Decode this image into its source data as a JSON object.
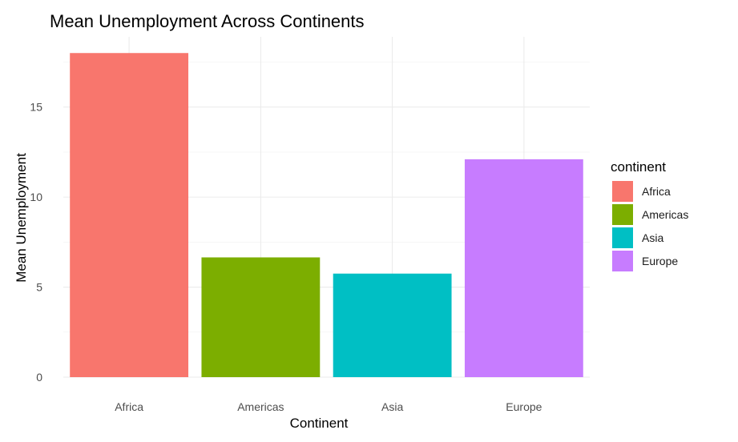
{
  "chart_data": {
    "type": "bar",
    "title": "Mean Unemployment Across Continents",
    "xlabel": "Continent",
    "ylabel": "Mean Unemployment",
    "categories": [
      "Africa",
      "Americas",
      "Asia",
      "Europe"
    ],
    "values": [
      18.0,
      6.65,
      5.75,
      12.1
    ],
    "colors": [
      "#F8766D",
      "#7CAE00",
      "#00BFC4",
      "#C77CFF"
    ],
    "ylim": [
      0,
      18.9
    ],
    "yticks": [
      0,
      5,
      10,
      15
    ],
    "grid": true,
    "legend": {
      "title": "continent",
      "position": "right",
      "entries": [
        "Africa",
        "Americas",
        "Asia",
        "Europe"
      ]
    }
  }
}
